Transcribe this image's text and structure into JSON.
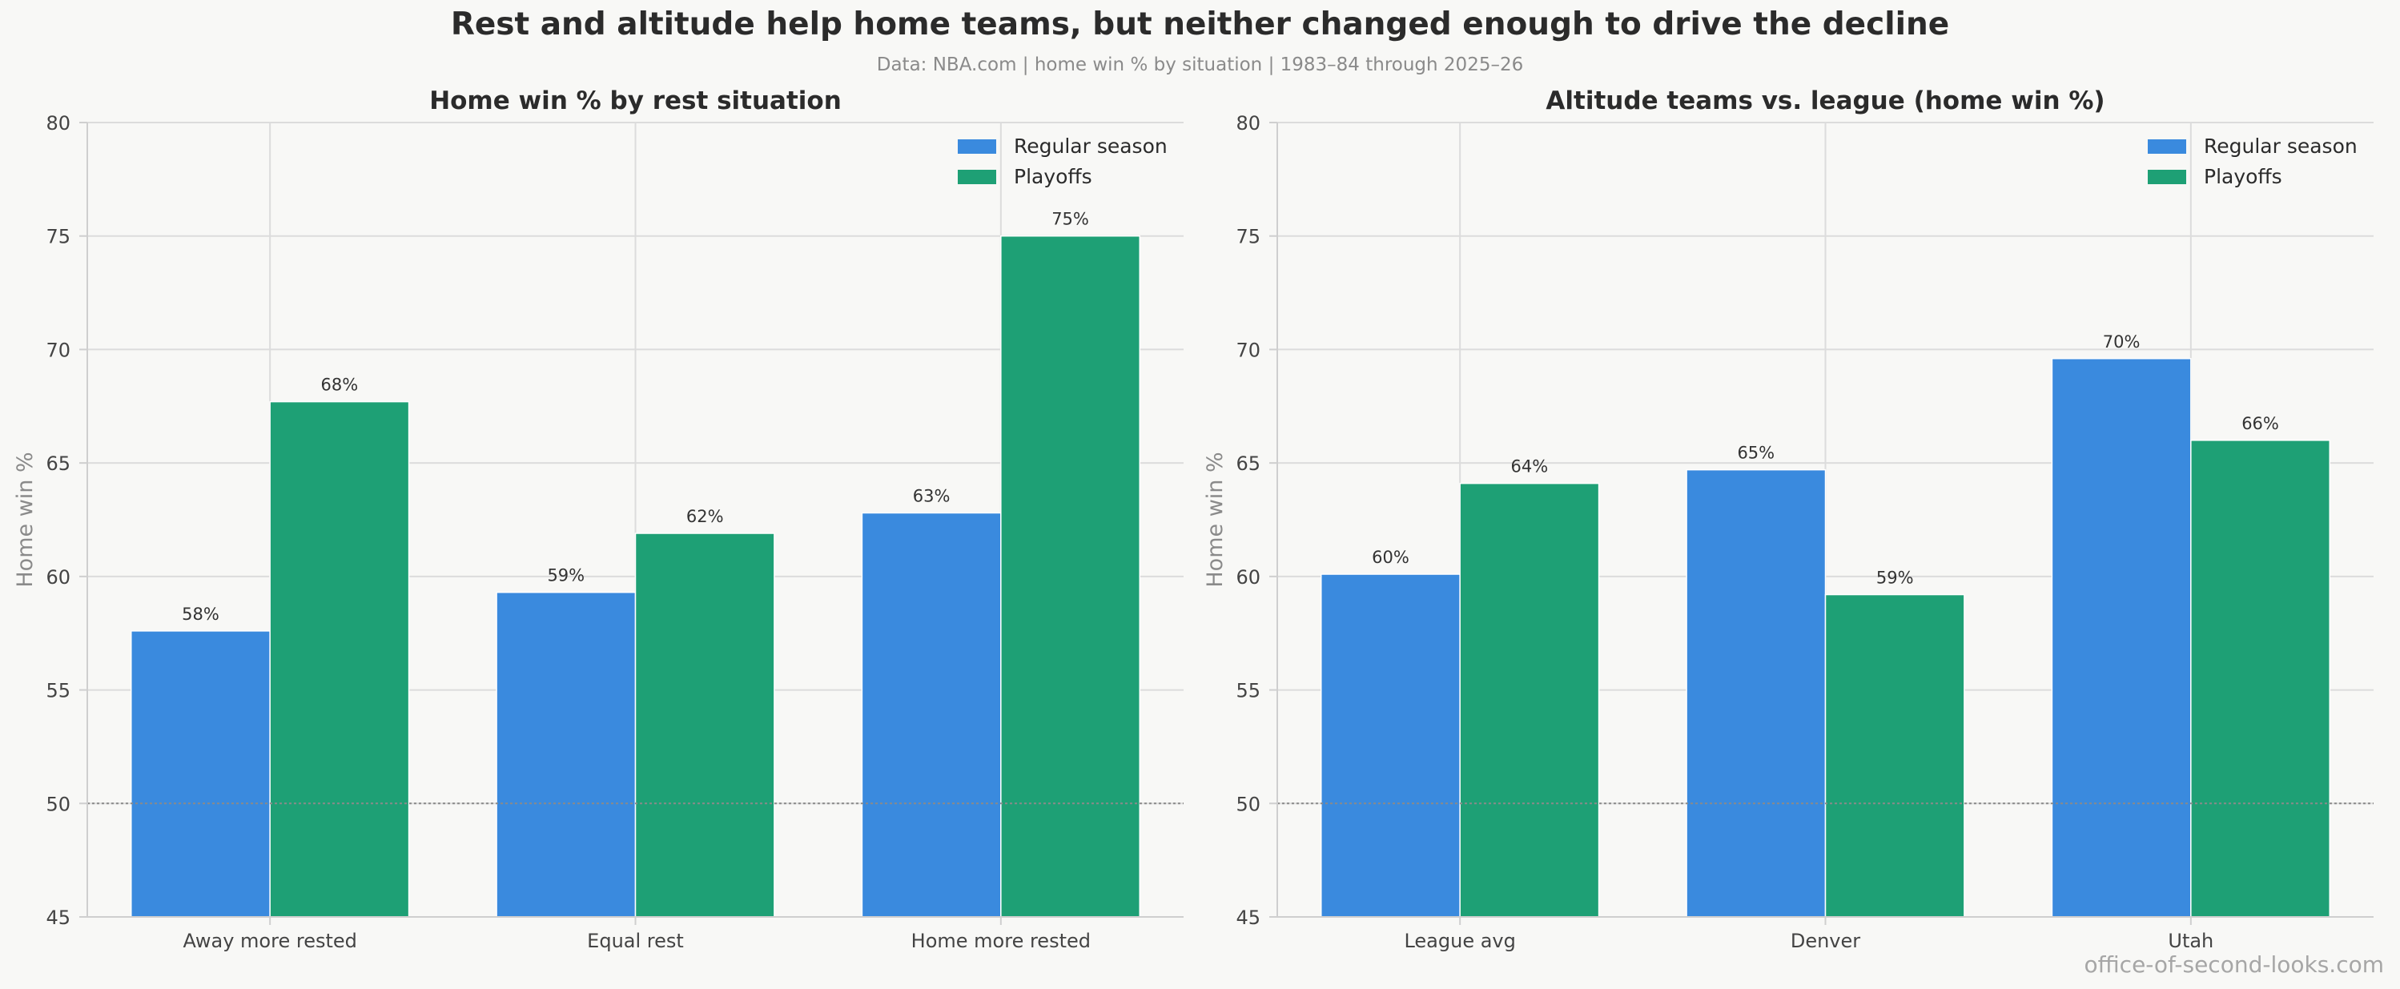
{
  "title": "Rest and altitude help home teams, but neither changed enough to drive the decline",
  "subtitle": "Data: NBA.com  |  home win % by situation  |  1983–84 through 2025–26",
  "watermark": "office-of-second-looks.com",
  "colors": {
    "regular_season": "#3a8ade",
    "playoffs": "#1ea075"
  },
  "chart_data": [
    {
      "type": "bar",
      "title": "Home win % by rest situation",
      "ylabel": "Home win %",
      "xlabel": "",
      "ylim": [
        45,
        80
      ],
      "yticks": [
        45,
        50,
        55,
        60,
        65,
        70,
        75,
        80
      ],
      "reference_line": 50,
      "grid": true,
      "legend_position": "top-right",
      "categories": [
        "Away more rested",
        "Equal rest",
        "Home more rested"
      ],
      "series": [
        {
          "name": "Regular season",
          "values": [
            57.6,
            59.3,
            62.8
          ],
          "labels": [
            "58%",
            "59%",
            "63%"
          ]
        },
        {
          "name": "Playoffs",
          "values": [
            67.7,
            61.9,
            75.0
          ],
          "labels": [
            "68%",
            "62%",
            "75%"
          ]
        }
      ]
    },
    {
      "type": "bar",
      "title": "Altitude teams vs. league (home win %)",
      "ylabel": "Home win %",
      "xlabel": "",
      "ylim": [
        45,
        80
      ],
      "yticks": [
        45,
        50,
        55,
        60,
        65,
        70,
        75,
        80
      ],
      "reference_line": 50,
      "grid": true,
      "legend_position": "top-right",
      "categories": [
        "League avg",
        "Denver",
        "Utah"
      ],
      "series": [
        {
          "name": "Regular season",
          "values": [
            60.1,
            64.7,
            69.6
          ],
          "labels": [
            "60%",
            "65%",
            "70%"
          ]
        },
        {
          "name": "Playoffs",
          "values": [
            64.1,
            59.2,
            66.0
          ],
          "labels": [
            "64%",
            "59%",
            "66%"
          ]
        }
      ]
    }
  ]
}
